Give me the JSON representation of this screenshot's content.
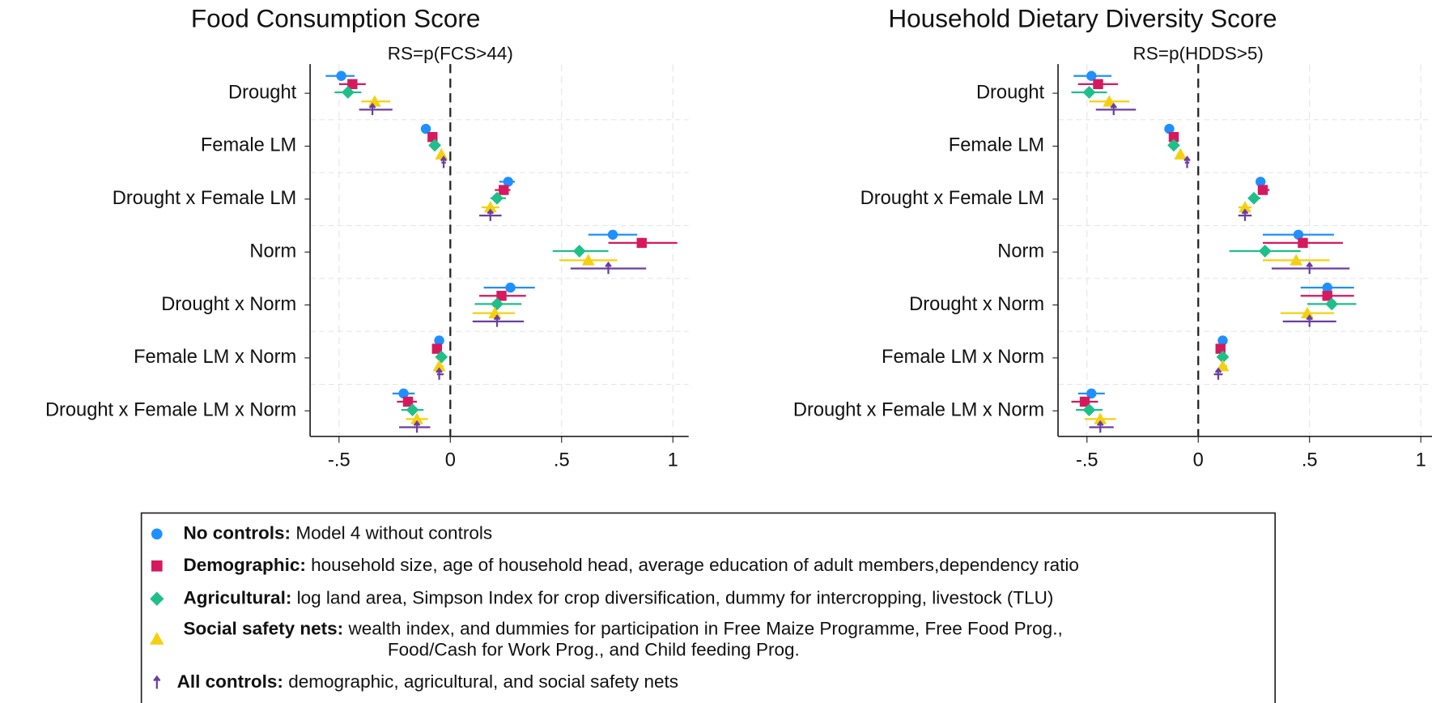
{
  "chart_data": [
    {
      "type": "coefplot",
      "title": "Food Consumption Score",
      "subtitle": "RS=p(FCS>44)",
      "categories": [
        "Drought",
        "Female LM",
        "Drought x Female LM",
        "Norm",
        "Drought x Norm",
        "Female LM x Norm",
        "Drought x Female LM x Norm"
      ],
      "xlim": [
        -0.63,
        1.07
      ],
      "xticks": [
        {
          "value": -0.5,
          "label": "-.5"
        },
        0,
        {
          "value": 0.5,
          "label": ".5"
        },
        1
      ],
      "refline": 0,
      "grid": true,
      "series": [
        {
          "values": [
            -0.49,
            -0.11,
            0.26,
            0.73,
            0.27,
            -0.05,
            -0.21
          ],
          "lo": [
            -0.56,
            -0.12,
            0.22,
            0.62,
            0.15,
            -0.06,
            -0.26
          ],
          "hi": [
            -0.43,
            -0.1,
            0.29,
            0.84,
            0.38,
            -0.04,
            -0.16
          ]
        },
        {
          "values": [
            -0.44,
            -0.08,
            0.24,
            0.86,
            0.23,
            -0.06,
            -0.19
          ],
          "lo": [
            -0.5,
            -0.09,
            0.2,
            0.71,
            0.13,
            -0.08,
            -0.24
          ],
          "hi": [
            -0.38,
            -0.07,
            0.27,
            1.02,
            0.34,
            -0.05,
            -0.15
          ]
        },
        {
          "values": [
            -0.46,
            -0.07,
            0.21,
            0.58,
            0.21,
            -0.04,
            -0.17
          ],
          "lo": [
            -0.52,
            -0.08,
            0.18,
            0.46,
            0.11,
            -0.06,
            -0.22
          ],
          "hi": [
            -0.4,
            -0.06,
            0.25,
            0.71,
            0.32,
            -0.03,
            -0.12
          ]
        },
        {
          "values": [
            -0.34,
            -0.04,
            0.18,
            0.62,
            0.2,
            -0.05,
            -0.15
          ],
          "lo": [
            -0.4,
            -0.05,
            0.14,
            0.49,
            0.1,
            -0.06,
            -0.2
          ],
          "hi": [
            -0.27,
            -0.03,
            0.22,
            0.75,
            0.29,
            -0.03,
            -0.1
          ]
        },
        {
          "values": [
            -0.35,
            -0.03,
            0.18,
            0.71,
            0.21,
            -0.05,
            -0.15
          ],
          "lo": [
            -0.41,
            -0.04,
            0.13,
            0.54,
            0.1,
            -0.06,
            -0.23
          ],
          "hi": [
            -0.26,
            -0.02,
            0.23,
            0.88,
            0.33,
            -0.03,
            -0.09
          ]
        }
      ]
    },
    {
      "type": "coefplot",
      "title": "Household Dietary Diversity Score",
      "subtitle": "RS=p(HDDS>5)",
      "categories": [
        "Drought",
        "Female LM",
        "Drought x Female LM",
        "Norm",
        "Drought x Norm",
        "Female LM x Norm",
        "Drought x Female LM x Norm"
      ],
      "xlim": [
        -0.63,
        1.07
      ],
      "xticks": [
        {
          "value": -0.5,
          "label": "-.5"
        },
        0,
        {
          "value": 0.5,
          "label": ".5"
        },
        1
      ],
      "refline": 0,
      "grid": true,
      "series": [
        {
          "values": [
            -0.48,
            -0.13,
            0.28,
            0.45,
            0.58,
            0.11,
            -0.48
          ],
          "lo": [
            -0.56,
            -0.14,
            0.26,
            0.29,
            0.46,
            0.1,
            -0.54
          ],
          "hi": [
            -0.39,
            -0.12,
            0.3,
            0.61,
            0.7,
            0.12,
            -0.42
          ]
        },
        {
          "values": [
            -0.45,
            -0.11,
            0.29,
            0.47,
            0.58,
            0.1,
            -0.51
          ],
          "lo": [
            -0.54,
            -0.12,
            0.27,
            0.29,
            0.46,
            0.09,
            -0.57
          ],
          "hi": [
            -0.36,
            -0.1,
            0.32,
            0.65,
            0.7,
            0.11,
            -0.45
          ]
        },
        {
          "values": [
            -0.49,
            -0.11,
            0.25,
            0.3,
            0.6,
            0.11,
            -0.49
          ],
          "lo": [
            -0.57,
            -0.12,
            0.23,
            0.14,
            0.49,
            0.1,
            -0.55
          ],
          "hi": [
            -0.41,
            -0.1,
            0.28,
            0.46,
            0.71,
            0.12,
            -0.43
          ]
        },
        {
          "values": [
            -0.4,
            -0.08,
            0.21,
            0.44,
            0.49,
            0.11,
            -0.44
          ],
          "lo": [
            -0.49,
            -0.09,
            0.18,
            0.29,
            0.37,
            0.1,
            -0.51
          ],
          "hi": [
            -0.31,
            -0.07,
            0.24,
            0.59,
            0.61,
            0.13,
            -0.37
          ]
        },
        {
          "values": [
            -0.38,
            -0.05,
            0.21,
            0.5,
            0.5,
            0.09,
            -0.44
          ],
          "lo": [
            -0.46,
            -0.06,
            0.18,
            0.33,
            0.38,
            0.07,
            -0.49
          ],
          "hi": [
            -0.28,
            -0.04,
            0.24,
            0.68,
            0.62,
            0.11,
            -0.38
          ]
        }
      ]
    }
  ],
  "legend": {
    "items": [
      {
        "name": "No controls:",
        "description": [
          "Model 4 without controls"
        ],
        "color": "#1e90ff",
        "marker": "circle"
      },
      {
        "name": "Demographic:",
        "description": [
          "household size, age of household head, average education of adult members,dependency ratio"
        ],
        "color": "#d6195e",
        "marker": "square"
      },
      {
        "name": "Agricultural:",
        "description": [
          "log land area, Simpson Index for crop diversification, dummy for intercropping, livestock (TLU)"
        ],
        "color": "#1fbf8a",
        "marker": "diamond"
      },
      {
        "name": "Social safety nets:",
        "description": [
          "wealth index, and dummies for participation in Free Maize Programme, Free Food Prog.,",
          "Food/Cash for Work Prog., and Child feeding Prog."
        ],
        "color": "#f5d00f",
        "marker": "triangle"
      },
      {
        "name": "All controls:",
        "description": [
          "demographic, agricultural, and social safety nets"
        ],
        "color": "#6a3fa0",
        "marker": "spike"
      }
    ]
  }
}
